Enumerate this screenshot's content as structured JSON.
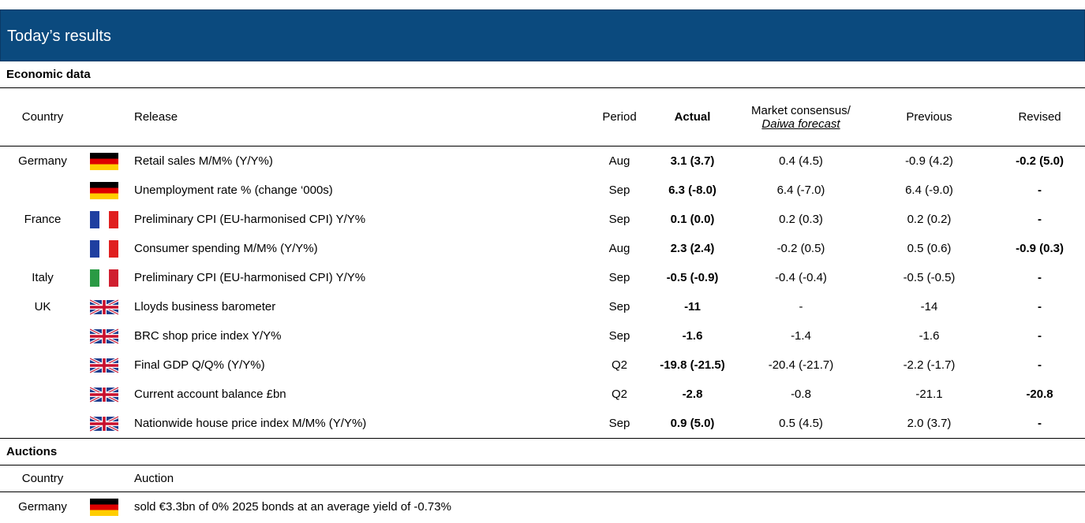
{
  "header": {
    "title": "Today’s results"
  },
  "economic": {
    "title": "Economic data",
    "columns": {
      "country": "Country",
      "release": "Release",
      "period": "Period",
      "actual": "Actual",
      "consensus": "Market consensus/",
      "forecast": "Daiwa forecast",
      "previous": "Previous",
      "revised": "Revised"
    },
    "rows": [
      {
        "country": "Germany",
        "release": "Retail sales M/M% (Y/Y%)",
        "period": "Aug",
        "actual": "3.1 (3.7)",
        "consensus": "0.4 (4.5)",
        "previous": "-0.9 (4.2)",
        "revised": "-0.2 (5.0)"
      },
      {
        "release": "Unemployment rate % (change ‘000s)",
        "period": "Sep",
        "actual": "6.3 (-8.0)",
        "consensus": "6.4 (-7.0)",
        "previous": "6.4 (-9.0)",
        "revised": "-"
      },
      {
        "country": "France",
        "release": "Preliminary CPI (EU-harmonised CPI) Y/Y%",
        "period": "Sep",
        "actual": "0.1 (0.0)",
        "consensus": "0.2 (0.3)",
        "previous": "0.2 (0.2)",
        "revised": "-"
      },
      {
        "release": "Consumer spending M/M% (Y/Y%)",
        "period": "Aug",
        "actual": "2.3 (2.4)",
        "consensus": "-0.2 (0.5)",
        "previous": "0.5 (0.6)",
        "revised": "-0.9 (0.3)"
      },
      {
        "country": "Italy",
        "release": "Preliminary CPI (EU-harmonised CPI) Y/Y%",
        "period": "Sep",
        "actual": "-0.5 (-0.9)",
        "consensus": "-0.4 (-0.4)",
        "previous": "-0.5 (-0.5)",
        "revised": "-"
      },
      {
        "country": "UK",
        "release": "Lloyds business barometer",
        "period": "Sep",
        "actual": "-11",
        "consensus": "-",
        "previous": "-14",
        "revised": "-"
      },
      {
        "release": "BRC shop price index Y/Y%",
        "period": "Sep",
        "actual": "-1.6",
        "consensus": "-1.4",
        "previous": "-1.6",
        "revised": "-"
      },
      {
        "release": "Final GDP Q/Q% (Y/Y%)",
        "period": "Q2",
        "actual": "-19.8 (-21.5)",
        "consensus": "-20.4 (-21.7)",
        "previous": "-2.2 (-1.7)",
        "revised": "-"
      },
      {
        "release": "Current account balance £bn",
        "period": "Q2",
        "actual": "-2.8",
        "consensus": "-0.8",
        "previous": "-21.1",
        "revised": "-20.8"
      },
      {
        "release": "Nationwide house price index M/M% (Y/Y%)",
        "period": "Sep",
        "actual": "0.9 (5.0)",
        "consensus": "0.5 (4.5)",
        "previous": "2.0 (3.7)",
        "revised": "-"
      }
    ]
  },
  "auctions": {
    "title": "Auctions",
    "columns": {
      "country": "Country",
      "auction": "Auction"
    },
    "rows": [
      {
        "country": "Germany",
        "auction": "sold  €3.3bn of 0% 2025 bonds at an average yield of -0.73%"
      }
    ]
  }
}
